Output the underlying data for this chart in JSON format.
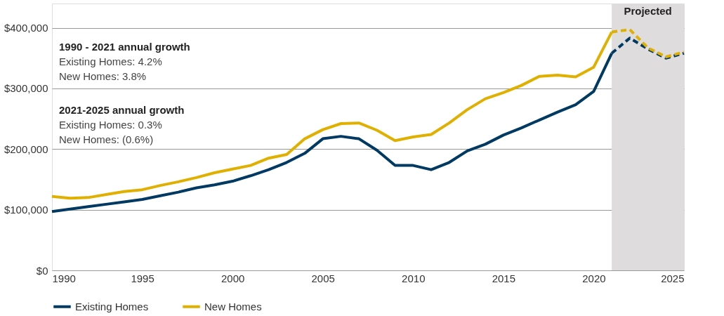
{
  "chart_data": {
    "type": "line",
    "annotations": [
      "1990 - 2021 annual growth",
      "Existing Homes: 4.2%",
      "New Homes: 3.8%",
      "2021-2025 annual growth",
      "Existing Homes: 0.3%",
      "New Homes: (0.6%)"
    ],
    "series": [
      {
        "name": "Existing Homes",
        "color": "#003a63",
        "line_style": "solid",
        "x": [
          1990,
          1991,
          1992,
          1993,
          1994,
          1995,
          1996,
          1997,
          1998,
          1999,
          2000,
          2001,
          2002,
          2003,
          2004,
          2005,
          2006,
          2007,
          2008,
          2009,
          2010,
          2011,
          2012,
          2013,
          2014,
          2015,
          2016,
          2017,
          2018,
          2019,
          2020,
          2021
        ],
        "values": [
          97000,
          101000,
          105000,
          109000,
          113000,
          117000,
          123000,
          129000,
          136000,
          141000,
          147000,
          156000,
          166000,
          178000,
          193000,
          217000,
          221000,
          217000,
          198000,
          173000,
          173000,
          166000,
          178000,
          197000,
          208000,
          223000,
          235000,
          248000,
          261000,
          273000,
          295000,
          358000
        ]
      },
      {
        "name": "New Homes",
        "color": "#e0b000",
        "line_style": "solid",
        "x": [
          1990,
          1991,
          1992,
          1993,
          1994,
          1995,
          1996,
          1997,
          1998,
          1999,
          2000,
          2001,
          2002,
          2003,
          2004,
          2005,
          2006,
          2007,
          2008,
          2009,
          2010,
          2011,
          2012,
          2013,
          2014,
          2015,
          2016,
          2017,
          2018,
          2019,
          2020,
          2021
        ],
        "values": [
          122000,
          119000,
          120000,
          125000,
          130000,
          133000,
          140000,
          146000,
          153000,
          161000,
          167000,
          173000,
          185000,
          191000,
          217000,
          232000,
          242000,
          243000,
          231000,
          214000,
          220000,
          224000,
          243000,
          265000,
          283000,
          293000,
          305000,
          320000,
          322000,
          319000,
          335000,
          393000
        ]
      },
      {
        "color": "#003a63",
        "line_style": "dashed",
        "x": [
          2021,
          2022,
          2023,
          2024,
          2025
        ],
        "values": [
          358000,
          383000,
          365000,
          350000,
          358000
        ]
      },
      {
        "color": "#e0b000",
        "line_style": "dashed",
        "x": [
          2021,
          2022,
          2023,
          2024,
          2025
        ],
        "values": [
          393000,
          397000,
          367000,
          352000,
          360000
        ]
      }
    ],
    "xlim": [
      1990,
      2025
    ],
    "xticks": [
      1990,
      1995,
      2000,
      2005,
      2010,
      2015,
      2020,
      2025
    ],
    "ylim": [
      0,
      440000
    ],
    "yticks": [
      {
        "value": 0,
        "label": "$0"
      },
      {
        "value": 100000,
        "label": "$100,000"
      },
      {
        "value": 200000,
        "label": "$200,000"
      },
      {
        "value": 300000,
        "label": "$300,000"
      },
      {
        "value": 400000,
        "label": "$400,000"
      }
    ],
    "bands": [
      {
        "axis": "x",
        "from": 2021,
        "to": 2025,
        "label": "Projected",
        "color": "#dedcdd"
      }
    ],
    "grid": "y",
    "legend": "bottom"
  }
}
